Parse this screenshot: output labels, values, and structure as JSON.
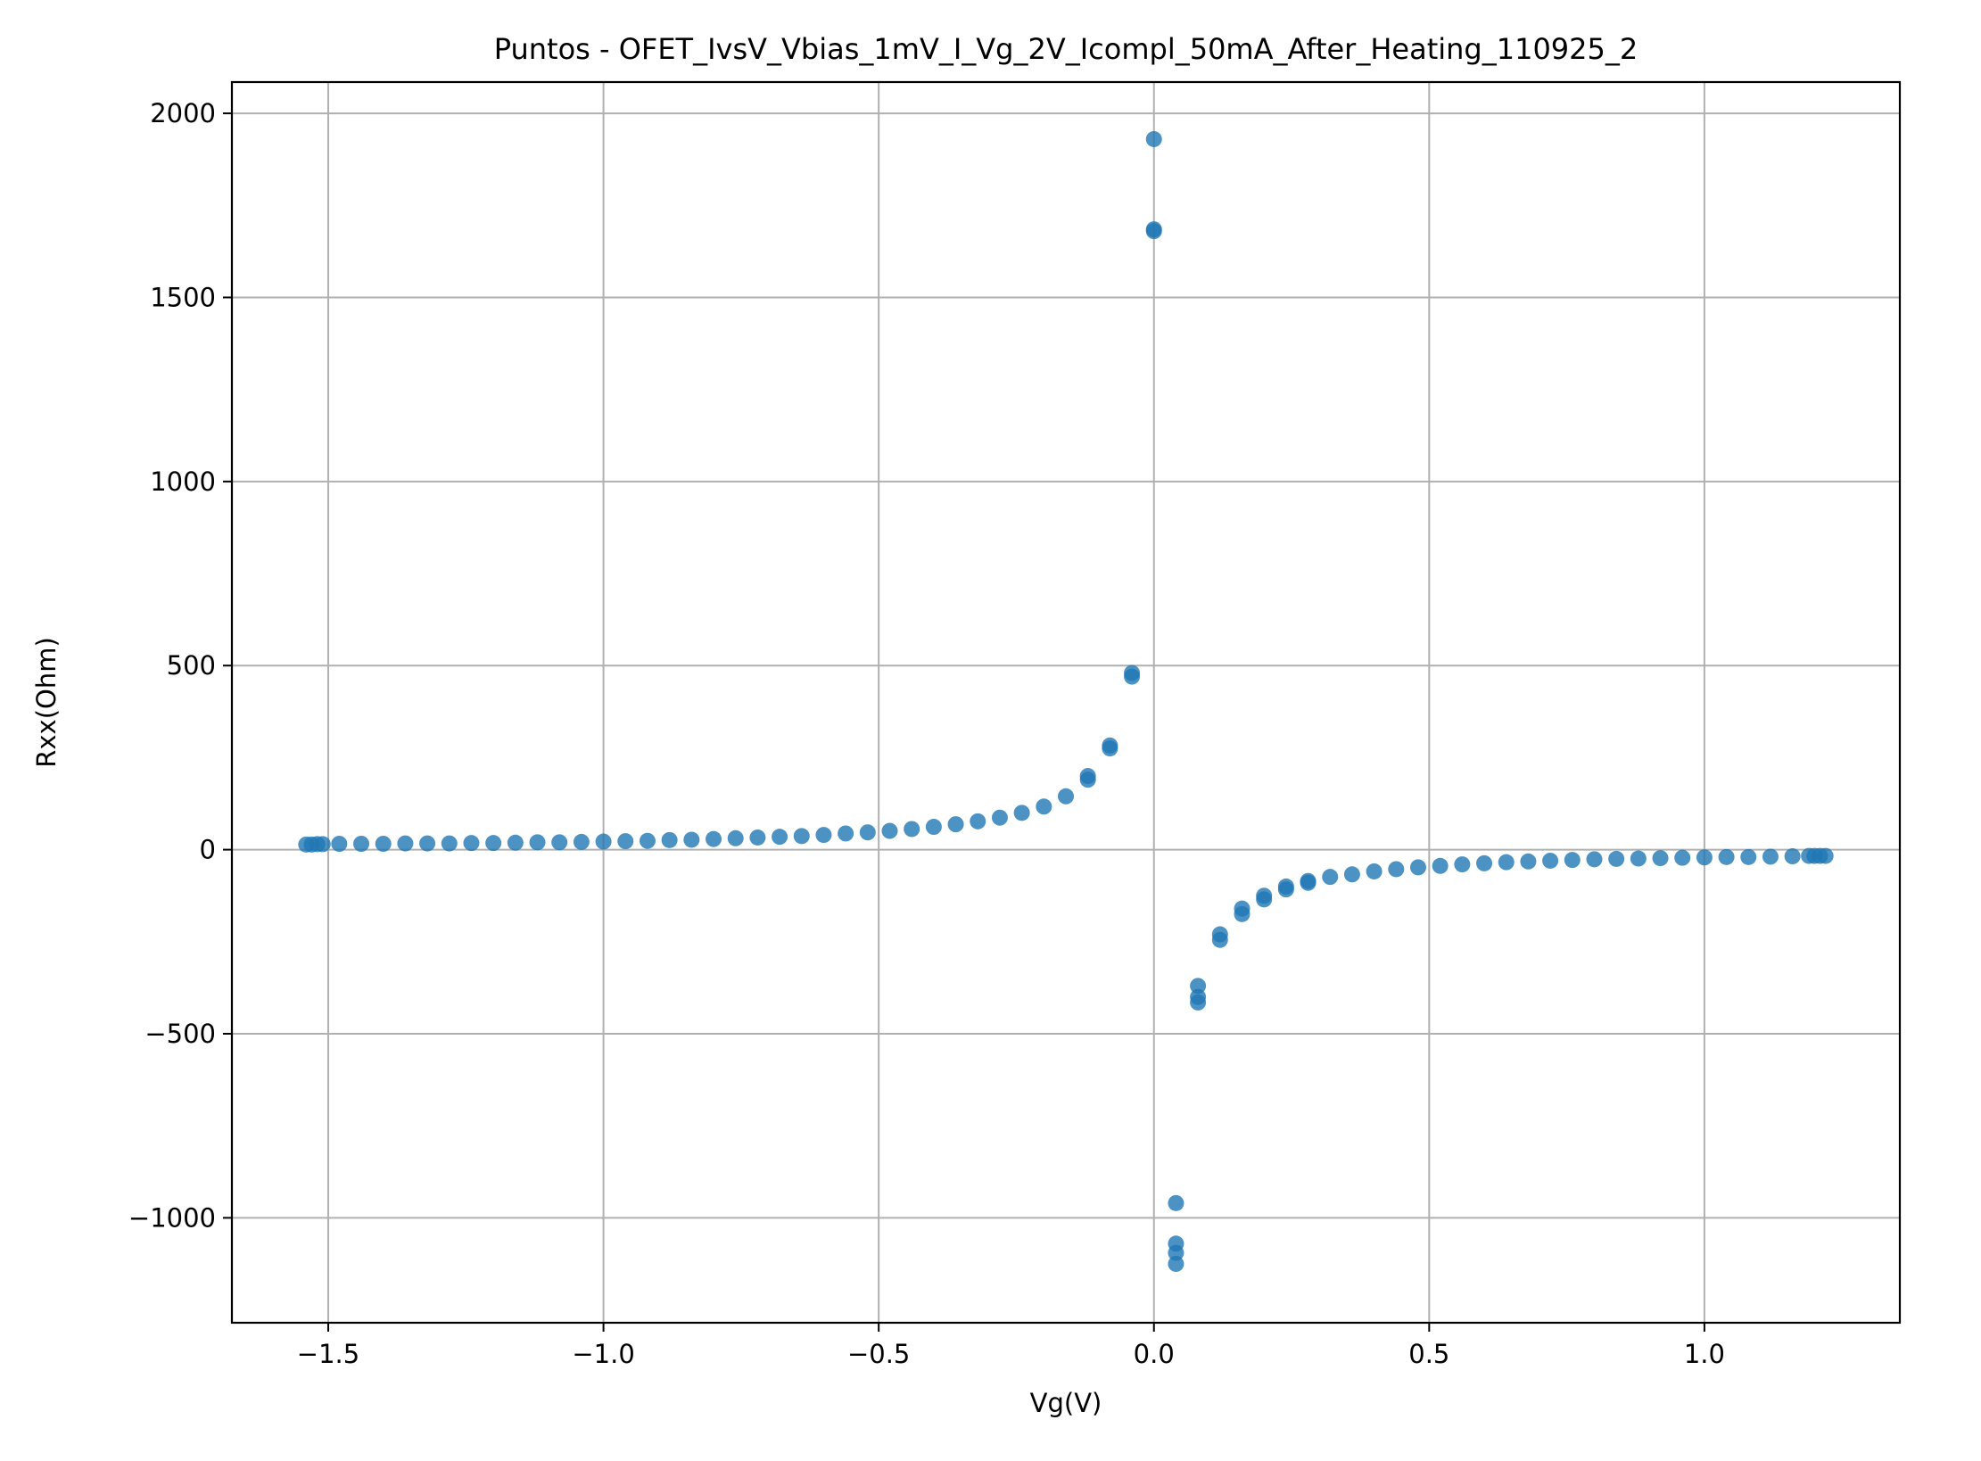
{
  "chart_data": {
    "type": "scatter",
    "title": "Puntos - OFET_IvsV_Vbias_1mV_I_Vg_2V_Icompl_50mA_After_Heating_110925_2",
    "xlabel": "Vg(V)",
    "ylabel": "Rxx(Ohm)",
    "xlim": [
      -1.675,
      1.355
    ],
    "ylim": [
      -1285,
      2085
    ],
    "xticks": [
      -1.5,
      -1.0,
      -0.5,
      0.0,
      0.5,
      1.0
    ],
    "xtick_labels": [
      "−1.5",
      "−1.0",
      "−0.5",
      "0.0",
      "0.5",
      "1.0"
    ],
    "yticks": [
      -1000,
      -500,
      0,
      500,
      1000,
      1500,
      2000
    ],
    "ytick_labels": [
      "−1000",
      "−500",
      "0",
      "500",
      "1000",
      "1500",
      "2000"
    ],
    "grid": true,
    "marker_color": "#1f77b4",
    "series": [
      {
        "x": [
          -1.54,
          -1.53,
          -1.52,
          -1.51,
          -1.48,
          -1.44,
          -1.4,
          -1.36,
          -1.32,
          -1.28,
          -1.24,
          -1.2,
          -1.16,
          -1.12,
          -1.08,
          -1.04,
          -1.0,
          -0.96,
          -0.92,
          -0.88,
          -0.84,
          -0.8,
          -0.76,
          -0.72,
          -0.68,
          -0.64,
          -0.6,
          -0.56,
          -0.52,
          -0.48,
          -0.44,
          -0.4,
          -0.36,
          -0.32,
          -0.28,
          -0.24,
          -0.2,
          -0.16,
          -0.12,
          -0.12,
          -0.08,
          -0.08,
          -0.04,
          -0.04,
          0.0,
          0.0,
          0.0,
          0.04,
          0.04,
          0.04,
          0.04,
          0.08,
          0.08,
          0.08,
          0.12,
          0.12,
          0.16,
          0.16,
          0.2,
          0.2,
          0.24,
          0.24,
          0.28,
          0.28,
          0.32,
          0.36,
          0.4,
          0.44,
          0.48,
          0.52,
          0.56,
          0.6,
          0.64,
          0.68,
          0.72,
          0.76,
          0.8,
          0.84,
          0.88,
          0.92,
          0.96,
          1.0,
          1.04,
          1.08,
          1.12,
          1.16,
          1.19,
          1.2,
          1.21,
          1.22
        ],
        "y": [
          14,
          14,
          15,
          15,
          16,
          16,
          16,
          17,
          17,
          17,
          18,
          18,
          19,
          20,
          20,
          21,
          22,
          23,
          24,
          26,
          27,
          29,
          31,
          33,
          35,
          37,
          40,
          44,
          47,
          51,
          56,
          62,
          69,
          77,
          87,
          100,
          117,
          145,
          190,
          200,
          275,
          283,
          470,
          480,
          1930,
          1680,
          1685,
          -960,
          -1070,
          -1095,
          -1125,
          -370,
          -400,
          -415,
          -230,
          -245,
          -160,
          -175,
          -125,
          -135,
          -100,
          -108,
          -85,
          -90,
          -74,
          -67,
          -59,
          -53,
          -48,
          -44,
          -40,
          -37,
          -34,
          -32,
          -30,
          -28,
          -26,
          -25,
          -24,
          -23,
          -22,
          -21,
          -20,
          -20,
          -19,
          -18,
          -17,
          -17,
          -17,
          -17
        ]
      }
    ]
  }
}
